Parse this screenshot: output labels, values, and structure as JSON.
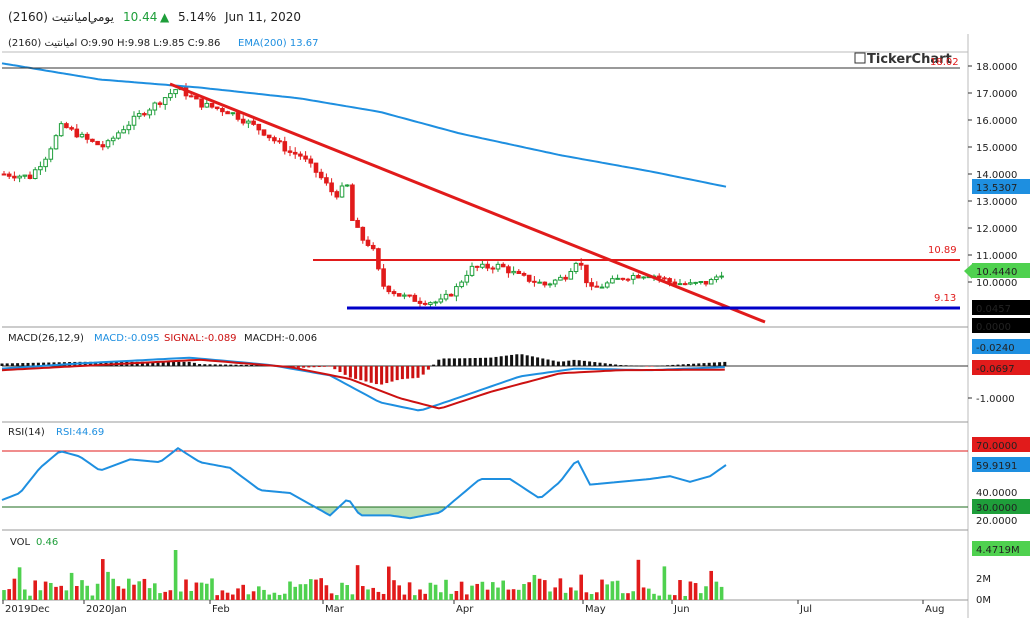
{
  "header": {
    "symbol": "اميانتيت (2160)",
    "period": "يومي",
    "last": "10.44",
    "change_pct": "5.14%",
    "date": "Jun 11, 2020",
    "up_color": "#1e9e3a"
  },
  "legend": {
    "ohlc": "اميانتيت (2160)  O:9.90  H:9.98  L:9.85  C:9.86",
    "ema": "EMA(200)  13.67",
    "macd": "MACD(26,12,9)",
    "macd_val": "MACD:-0.095",
    "signal_val": "SIGNAL:-0.089",
    "hist_val": "MACDH:-0.006",
    "rsi": "RSI(14)",
    "rsi_val": "RSI:44.69",
    "vol": "VOL",
    "vol_val": "0.46"
  },
  "watermark": "TickerChart",
  "chart_data": {
    "type": "candlestick",
    "price_axis": {
      "ticks": [
        "18.0000",
        "17.0000",
        "16.0000",
        "15.0000",
        "14.0000",
        "13.0000",
        "12.0000",
        "11.0000",
        "10.0000"
      ],
      "range": [
        9.2,
        18.9
      ]
    },
    "time_axis": [
      "2019Dec",
      "2020Jan",
      "Feb",
      "Mar",
      "Apr",
      "May",
      "Jun",
      "Jul",
      "Aug"
    ],
    "badges": {
      "ema": "13.5307",
      "last": "10.4440",
      "bar1": "0.0457",
      "zero": "0.0000",
      "macd": "-0.0240",
      "signal": "-0.0697",
      "macd_tick": "-1.0000",
      "rsi70": "70.0000",
      "rsi_last": "59.9191",
      "rsi30": "30.0000",
      "vol_last": "4.4719M"
    },
    "levels": {
      "resistance": "10.89",
      "support": "9.13",
      "top": "18.02"
    },
    "rsi_axis": [
      "40.0000",
      "20.0000"
    ],
    "vol_axis": [
      "2M",
      "0M"
    ],
    "colors": {
      "up": "#1e9e3a",
      "down": "#e11b1b",
      "ema": "#1e8fe0",
      "trend": "#e11b1b",
      "support": "#0000c8",
      "macd": "#1e8fe0",
      "signal": "#cc1111",
      "rsi": "#1e8fe0"
    }
  }
}
